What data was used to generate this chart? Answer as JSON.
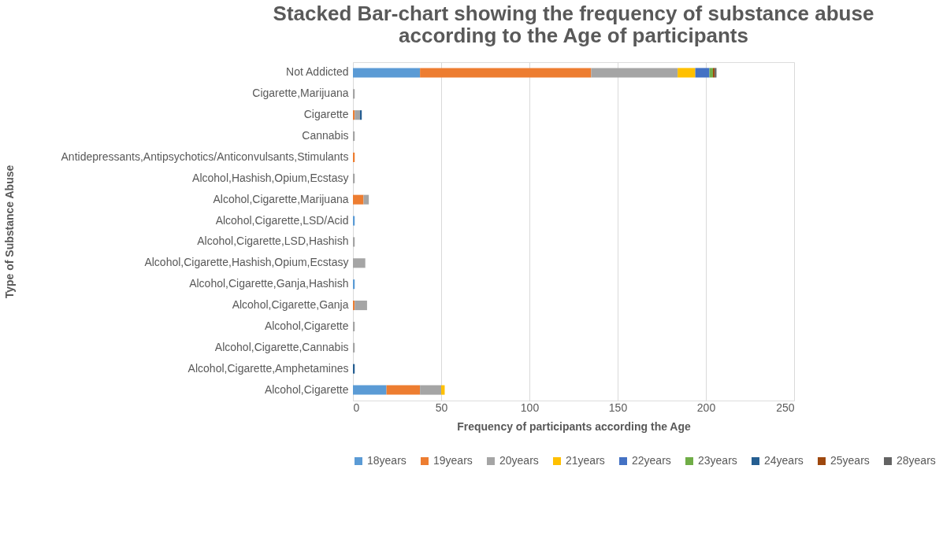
{
  "chart_data": {
    "type": "bar",
    "orientation": "horizontal",
    "stacked": true,
    "title": [
      "Stacked Bar-chart showing the frequency of substance abuse",
      "according to the Age of participants"
    ],
    "xlabel": "Frequency of participants according the Age",
    "ylabel": "Type of Substance Abuse",
    "categories": [
      "Not Addicted",
      "Cigarette,Marijuana",
      "Cigarette",
      "Cannabis",
      "Antidepressants,Antipsychotics/Anticonvulsants,Stimulants",
      "Alcohol,Hashish,Opium,Ecstasy",
      "Alcohol,Cigarette,Marijuana",
      "Alcohol,Cigarette,LSD/Acid",
      "Alcohol,Cigarette,LSD,Hashish",
      "Alcohol,Cigarette,Hashish,Opium,Ecstasy",
      "Alcohol,Cigarette,Ganja,Hashish",
      "Alcohol,Cigarette,Ganja",
      "Alcohol,Cigarette",
      "Alcohol,Cigarette,Cannabis",
      "Alcohol,Cigarette,Amphetamines",
      "Alcohol,Cigarette"
    ],
    "series": [
      {
        "name": "18years",
        "color": "#5b9bd5",
        "values": [
          38,
          null,
          null,
          null,
          null,
          null,
          null,
          1,
          null,
          null,
          1,
          null,
          null,
          null,
          null,
          19
        ]
      },
      {
        "name": "19years",
        "color": "#ed7d31",
        "values": [
          97,
          null,
          1,
          null,
          1,
          null,
          6,
          null,
          null,
          null,
          null,
          1,
          null,
          null,
          null,
          19
        ]
      },
      {
        "name": "20years",
        "color": "#a5a5a5",
        "values": [
          49,
          1,
          3,
          1,
          null,
          1,
          3,
          null,
          1,
          7,
          null,
          7,
          1,
          1,
          null,
          12
        ]
      },
      {
        "name": "21years",
        "color": "#ffc000",
        "values": [
          10,
          null,
          null,
          null,
          null,
          null,
          null,
          null,
          null,
          null,
          null,
          null,
          null,
          null,
          null,
          2
        ]
      },
      {
        "name": "22years",
        "color": "#4472c4",
        "values": [
          8,
          null,
          null,
          null,
          null,
          null,
          null,
          null,
          null,
          null,
          null,
          null,
          null,
          null,
          null,
          null
        ]
      },
      {
        "name": "23years",
        "color": "#70ad47",
        "values": [
          2,
          null,
          null,
          null,
          null,
          null,
          null,
          null,
          null,
          null,
          null,
          null,
          null,
          null,
          null,
          null
        ]
      },
      {
        "name": "24years",
        "color": "#255e91",
        "values": [
          null,
          null,
          1,
          null,
          null,
          null,
          null,
          null,
          null,
          null,
          null,
          null,
          null,
          null,
          1,
          null
        ]
      },
      {
        "name": "25years",
        "color": "#9e480e",
        "values": [
          1,
          null,
          null,
          null,
          null,
          null,
          null,
          null,
          null,
          null,
          null,
          null,
          null,
          null,
          null,
          null
        ]
      },
      {
        "name": "28years",
        "color": "#636363",
        "values": [
          1,
          null,
          null,
          null,
          null,
          null,
          null,
          null,
          null,
          null,
          null,
          null,
          null,
          null,
          null,
          null
        ]
      }
    ],
    "xlim": [
      0,
      250
    ],
    "xticks": [
      0,
      50,
      100,
      150,
      200,
      250
    ],
    "grid": "x",
    "legend": "bottom"
  }
}
